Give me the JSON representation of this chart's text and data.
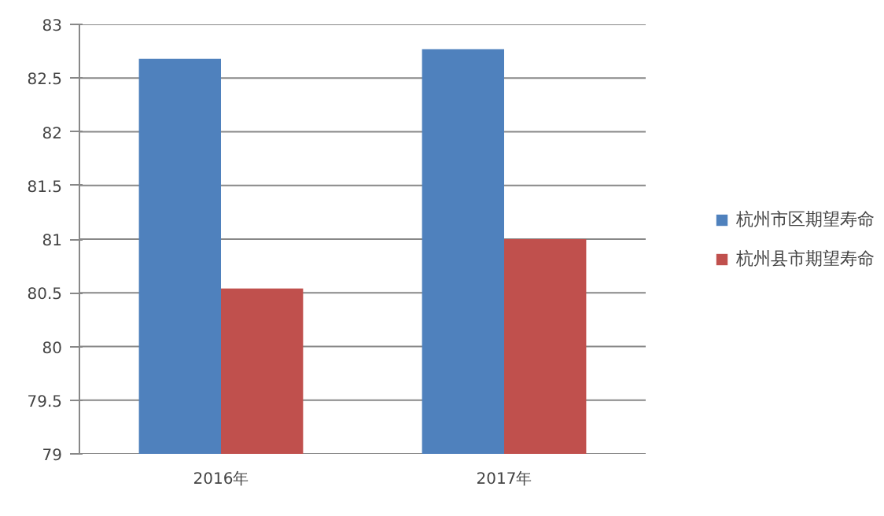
{
  "chart_data": {
    "type": "bar",
    "categories": [
      "2016年",
      "2017年"
    ],
    "series": [
      {
        "name": "杭州市区期望寿命",
        "color": "#4f81bd",
        "values": [
          82.68,
          82.77
        ]
      },
      {
        "name": "杭州县市期望寿命",
        "color": "#c0504d",
        "values": [
          80.54,
          81.0
        ]
      }
    ],
    "ylim": [
      79,
      83
    ],
    "yticks": [
      79,
      79.5,
      80,
      80.5,
      81,
      81.5,
      82,
      82.5,
      83
    ],
    "grid": "y",
    "legend": "right"
  }
}
